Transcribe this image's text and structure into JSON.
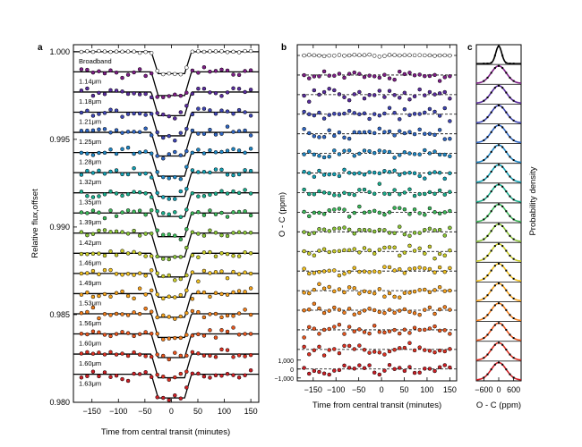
{
  "chart_data": [
    {
      "panel": "a",
      "type": "scatter",
      "title": "",
      "xlabel": "Time from central transit (minutes)",
      "ylabel": "Relative flux,offset",
      "xlim": [
        -185,
        165
      ],
      "ylim": [
        0.98,
        1.0004
      ],
      "xticks": [
        -150,
        -100,
        -50,
        0,
        50,
        100,
        150
      ],
      "yticks": [
        1.0,
        0.995,
        0.99,
        0.985,
        0.98
      ],
      "ytick_labels": [
        "1.000",
        "0.995",
        "0.990",
        "0.985",
        "0.980"
      ],
      "transit_depth": 0.00135,
      "broadband_depth": 0.00125,
      "transit_half_width_minutes": 38,
      "ingress_minutes": 13,
      "series": [
        {
          "name": "Broadband",
          "offset": 1.0,
          "color": "#ffffff"
        },
        {
          "name": "1.14μm",
          "offset": 0.99885,
          "color": "#7e1e86"
        },
        {
          "name": "1.18μm",
          "offset": 0.9977,
          "color": "#5a2d9e"
        },
        {
          "name": "1.21μm",
          "offset": 0.99655,
          "color": "#3f46b3"
        },
        {
          "name": "1.25μm",
          "offset": 0.9954,
          "color": "#2f66c2"
        },
        {
          "name": "1.28μm",
          "offset": 0.99425,
          "color": "#1f86c4"
        },
        {
          "name": "1.32μm",
          "offset": 0.9931,
          "color": "#13a0b3"
        },
        {
          "name": "1.35μm",
          "offset": 0.99195,
          "color": "#1aad8c"
        },
        {
          "name": "1.39μm",
          "offset": 0.9908,
          "color": "#3cb85a"
        },
        {
          "name": "1.42μm",
          "offset": 0.98965,
          "color": "#8ac437"
        },
        {
          "name": "1.46μm",
          "offset": 0.9885,
          "color": "#c9cc2a"
        },
        {
          "name": "1.49μm",
          "offset": 0.98735,
          "color": "#f0c020"
        },
        {
          "name": "1.53μm",
          "offset": 0.9862,
          "color": "#f5a21c"
        },
        {
          "name": "1.56μm",
          "offset": 0.98505,
          "color": "#f07d1c"
        },
        {
          "name": "1.60μm",
          "offset": 0.9839,
          "color": "#e8561f"
        },
        {
          "name": "1.60μm",
          "offset": 0.98275,
          "color": "#dc3123"
        },
        {
          "name": "1.63μm",
          "offset": 0.9816,
          "color": "#cc1f26"
        }
      ]
    },
    {
      "panel": "b",
      "type": "scatter",
      "title": "",
      "xlabel": "Time from central transit (minutes)",
      "ylabel": "O - C (ppm)",
      "xlim": [
        -185,
        165
      ],
      "xticks": [
        -150,
        -100,
        -50,
        0,
        50,
        100,
        150
      ],
      "residual_scale_ticks": [
        1000,
        0,
        -1000
      ],
      "residual_scale_labels": [
        "1,000",
        "0",
        "−1,000"
      ],
      "rows": 17,
      "rms_ppm": 300
    },
    {
      "panel": "c",
      "type": "line",
      "title": "",
      "xlabel": "O - C (ppm)",
      "ylabel": "Probability density",
      "xlim": [
        -900,
        900
      ],
      "xticks": [
        -600,
        0,
        600
      ],
      "xtick_labels": [
        "−600",
        "0",
        "600"
      ],
      "rows": 17,
      "sigma_ppm": [
        120,
        300,
        300,
        300,
        300,
        300,
        300,
        300,
        300,
        300,
        300,
        300,
        300,
        300,
        300,
        300,
        300
      ]
    }
  ],
  "panel_labels": {
    "a": "a",
    "b": "b",
    "c": "c"
  }
}
